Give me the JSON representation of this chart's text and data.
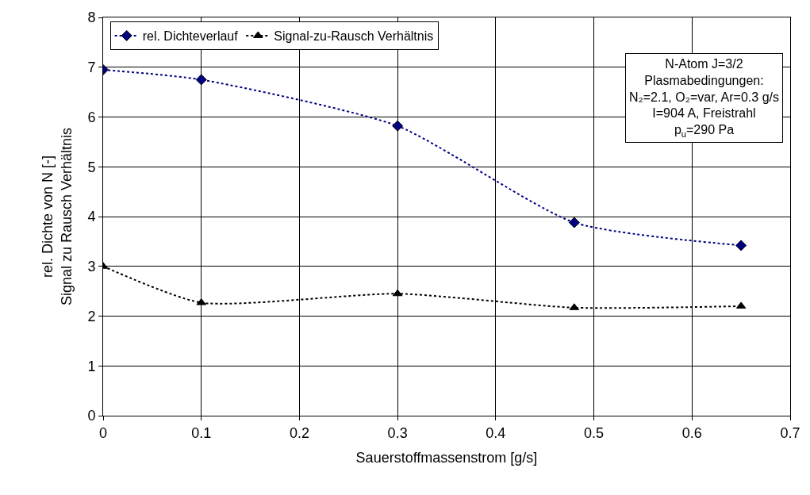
{
  "chart_data": {
    "type": "line",
    "xlabel": "Sauerstoffmassenstrom [g/s]",
    "ylabel": "rel. Dichte von N [-]\nSignal zu Rausch Verhältnis",
    "x": [
      0,
      0.1,
      0.3,
      0.48,
      0.65
    ],
    "series": [
      {
        "name": "rel. Dichteverlauf",
        "color": "#000080",
        "values": [
          6.95,
          6.75,
          5.82,
          3.88,
          3.42
        ],
        "marker": "diamond",
        "line_style": "dotted"
      },
      {
        "name": "Signal-zu-Rausch Verhältnis",
        "color": "#000000",
        "values": [
          3.0,
          2.27,
          2.45,
          2.17,
          2.2
        ],
        "marker": "triangle",
        "line_style": "dotted"
      }
    ],
    "xlim": [
      0,
      0.7
    ],
    "xticks": [
      0,
      0.1,
      0.2,
      0.3,
      0.4,
      0.5,
      0.6,
      0.7
    ],
    "ylim": [
      0,
      8
    ],
    "yticks": [
      0,
      1,
      2,
      3,
      4,
      5,
      6,
      7,
      8
    ],
    "grid": true,
    "legend": "top left",
    "annotations": [
      "N-Atom J=3/2\nPlasmabedingungen:\nN₂=2.1, O₂=var, Ar=0.3 g/s\nI=904 A, Freistrahl\np$_{u}$=290 Pa"
    ]
  }
}
